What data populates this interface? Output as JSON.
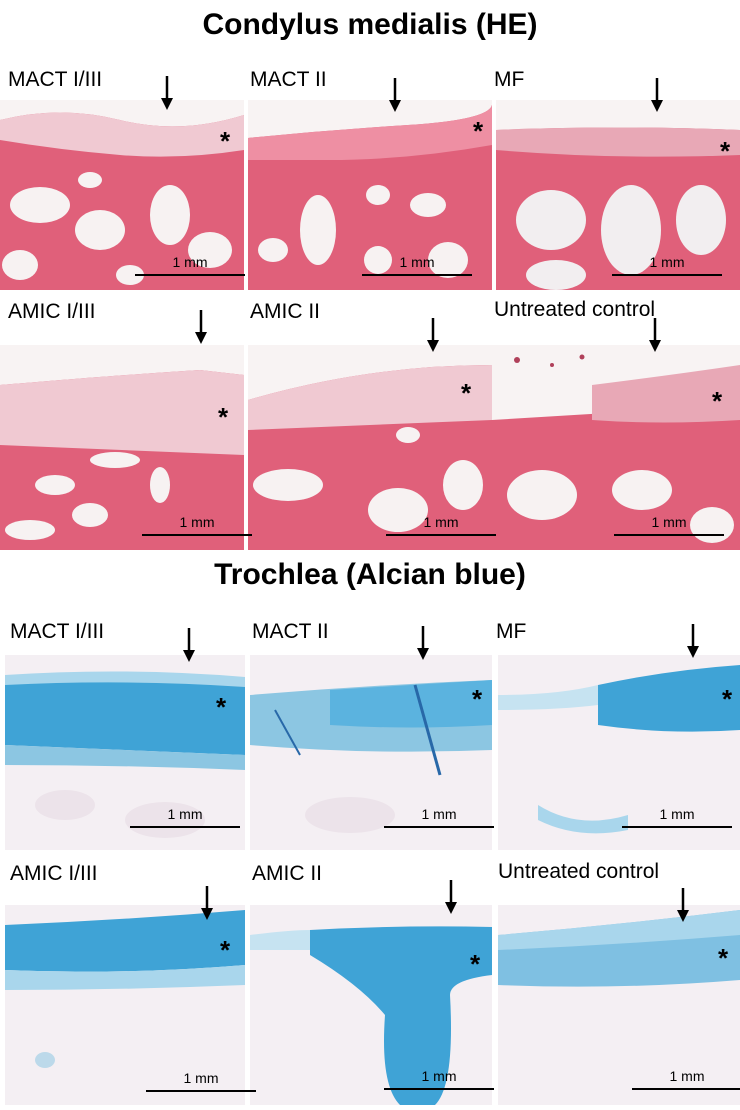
{
  "sections": {
    "condylus": {
      "title": "Condylus medialis (HE)"
    },
    "trochlea": {
      "title": "Trochlea (Alcian blue)"
    }
  },
  "panels": {
    "he_1": {
      "label": "MACT I/III",
      "scale": "1 mm",
      "asterisk": "*"
    },
    "he_2": {
      "label": "MACT II",
      "scale": "1 mm",
      "asterisk": "*"
    },
    "he_3": {
      "label": "MF",
      "scale": "1 mm",
      "asterisk": "*"
    },
    "he_4": {
      "label": "AMIC I/III",
      "scale": "1 mm",
      "asterisk": "*"
    },
    "he_5": {
      "label": "AMIC II",
      "scale": "1 mm",
      "asterisk": "*"
    },
    "he_6": {
      "label": "Untreated control",
      "scale": "1 mm",
      "asterisk": "*"
    },
    "ab_1": {
      "label": "MACT I/III",
      "scale": "1 mm",
      "asterisk": "*"
    },
    "ab_2": {
      "label": "MACT II",
      "scale": "1 mm",
      "asterisk": "*"
    },
    "ab_3": {
      "label": "MF",
      "scale": "1 mm",
      "asterisk": "*"
    },
    "ab_4": {
      "label": "AMIC I/III",
      "scale": "1 mm",
      "asterisk": "*"
    },
    "ab_5": {
      "label": "AMIC II",
      "scale": "1 mm",
      "asterisk": "*"
    },
    "ab_6": {
      "label": "Untreated control",
      "scale": "1 mm",
      "asterisk": "*"
    }
  },
  "colors": {
    "he_bone": "#e0607a",
    "he_light": "#f3d2da",
    "he_cartilage": "#efc6cf",
    "he_space": "#f7f2f2",
    "ab_blue": "#3fa3d6",
    "ab_lightblue": "#a9d6ec",
    "ab_bg": "#f4eff3"
  }
}
